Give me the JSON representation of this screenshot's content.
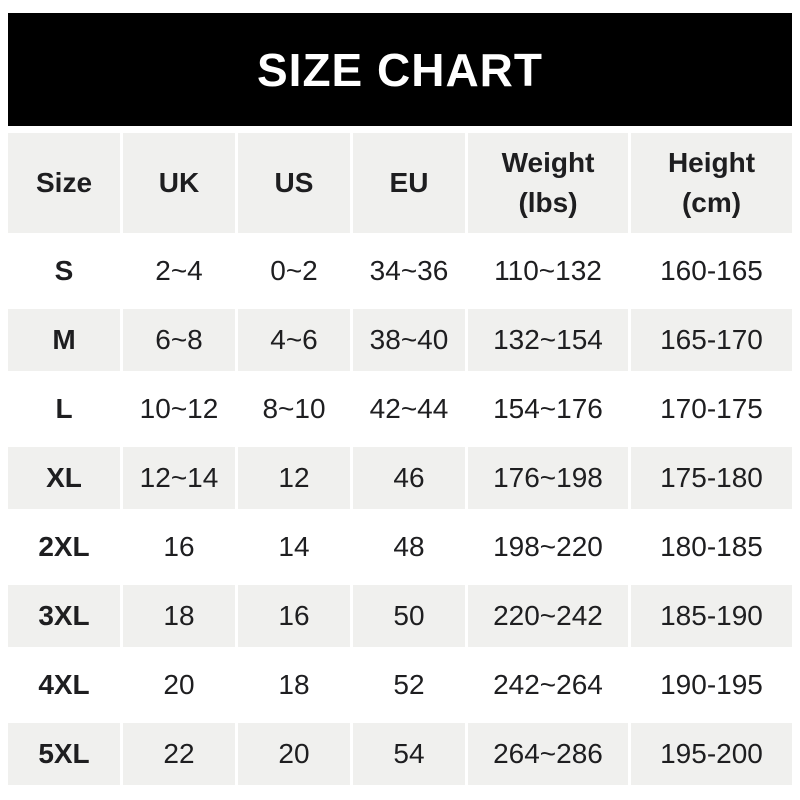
{
  "banner": {
    "title": "SIZE CHART"
  },
  "table": {
    "columns": [
      {
        "label": "Size",
        "sub": ""
      },
      {
        "label": "UK",
        "sub": ""
      },
      {
        "label": "US",
        "sub": ""
      },
      {
        "label": "EU",
        "sub": ""
      },
      {
        "label": "Weight",
        "sub": "(lbs)"
      },
      {
        "label": "Height",
        "sub": "(cm)"
      }
    ],
    "rows": [
      {
        "size": "S",
        "uk": "2~4",
        "us": "0~2",
        "eu": "34~36",
        "weight": "110~132",
        "height": "160-165"
      },
      {
        "size": "M",
        "uk": "6~8",
        "us": "4~6",
        "eu": "38~40",
        "weight": "132~154",
        "height": "165-170"
      },
      {
        "size": "L",
        "uk": "10~12",
        "us": "8~10",
        "eu": "42~44",
        "weight": "154~176",
        "height": "170-175"
      },
      {
        "size": "XL",
        "uk": "12~14",
        "us": "12",
        "eu": "46",
        "weight": "176~198",
        "height": "175-180"
      },
      {
        "size": "2XL",
        "uk": "16",
        "us": "14",
        "eu": "48",
        "weight": "198~220",
        "height": "180-185"
      },
      {
        "size": "3XL",
        "uk": "18",
        "us": "16",
        "eu": "50",
        "weight": "220~242",
        "height": "185-190"
      },
      {
        "size": "4XL",
        "uk": "20",
        "us": "18",
        "eu": "52",
        "weight": "242~264",
        "height": "190-195"
      },
      {
        "size": "5XL",
        "uk": "22",
        "us": "20",
        "eu": "54",
        "weight": "264~286",
        "height": "195-200"
      }
    ]
  },
  "colors": {
    "banner_bg": "#000000",
    "banner_text": "#ffffff",
    "row_shaded_bg": "#f0f0ee",
    "row_plain_bg": "#ffffff",
    "text": "#1e1e20"
  },
  "chart_data": {
    "type": "table",
    "title": "SIZE CHART",
    "columns": [
      "Size",
      "UK",
      "US",
      "EU",
      "Weight (lbs)",
      "Height (cm)"
    ],
    "rows": [
      [
        "S",
        "2~4",
        "0~2",
        "34~36",
        "110~132",
        "160-165"
      ],
      [
        "M",
        "6~8",
        "4~6",
        "38~40",
        "132~154",
        "165-170"
      ],
      [
        "L",
        "10~12",
        "8~10",
        "42~44",
        "154~176",
        "170-175"
      ],
      [
        "XL",
        "12~14",
        "12",
        "46",
        "176~198",
        "175-180"
      ],
      [
        "2XL",
        "16",
        "14",
        "48",
        "198~220",
        "180-185"
      ],
      [
        "3XL",
        "18",
        "16",
        "50",
        "220~242",
        "185-190"
      ],
      [
        "4XL",
        "20",
        "18",
        "52",
        "242~264",
        "190-195"
      ],
      [
        "5XL",
        "22",
        "20",
        "54",
        "264~286",
        "195-200"
      ]
    ]
  }
}
